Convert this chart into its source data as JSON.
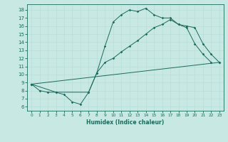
{
  "xlabel": "Humidex (Indice chaleur)",
  "bg_color": "#c8e8e4",
  "line_color": "#1a6b5a",
  "grid_color": "#b8ddd8",
  "xlim": [
    -0.5,
    23.5
  ],
  "ylim": [
    5.5,
    18.7
  ],
  "xticks": [
    0,
    1,
    2,
    3,
    4,
    5,
    6,
    7,
    8,
    9,
    10,
    11,
    12,
    13,
    14,
    15,
    16,
    17,
    18,
    19,
    20,
    21,
    22,
    23
  ],
  "yticks": [
    6,
    7,
    8,
    9,
    10,
    11,
    12,
    13,
    14,
    15,
    16,
    17,
    18
  ],
  "line1_x": [
    0,
    1,
    2,
    3,
    4,
    5,
    6,
    7,
    8,
    9,
    10,
    11,
    12,
    13,
    14,
    15,
    16,
    17,
    18,
    19,
    20,
    21,
    22
  ],
  "line1_y": [
    8.8,
    8.0,
    7.8,
    7.8,
    7.5,
    6.6,
    6.3,
    7.8,
    10.2,
    13.5,
    16.5,
    17.4,
    18.0,
    17.8,
    18.2,
    17.4,
    17.0,
    17.0,
    16.2,
    15.8,
    13.8,
    12.5,
    11.5
  ],
  "line2_x": [
    0,
    3,
    7,
    8,
    9,
    10,
    11,
    12,
    13,
    14,
    15,
    16,
    17,
    18,
    19,
    20,
    21,
    22,
    23
  ],
  "line2_y": [
    8.8,
    7.8,
    7.8,
    10.2,
    11.5,
    12.0,
    12.8,
    13.5,
    14.2,
    15.0,
    15.8,
    16.2,
    16.8,
    16.2,
    16.0,
    15.8,
    13.8,
    12.5,
    11.5
  ],
  "line3_x": [
    0,
    23
  ],
  "line3_y": [
    8.8,
    11.5
  ]
}
